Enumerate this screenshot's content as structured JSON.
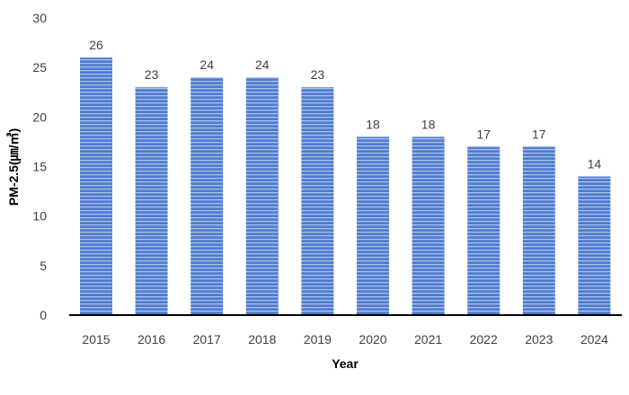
{
  "chart_data": {
    "type": "bar",
    "categories": [
      "2015",
      "2016",
      "2017",
      "2018",
      "2019",
      "2020",
      "2021",
      "2022",
      "2023",
      "2024"
    ],
    "values": [
      26,
      23,
      24,
      24,
      23,
      18,
      18,
      17,
      17,
      14
    ],
    "title": "",
    "xlabel": "Year",
    "ylabel": "PM-2.5(㎛/㎥)",
    "ylim": [
      0,
      30
    ],
    "yticks": [
      0,
      5,
      10,
      15,
      20,
      25,
      30
    ],
    "grid": false,
    "data_labels": true,
    "bar_color": "#4f7ccf",
    "bar_stripe_color": "#a9c0ea"
  }
}
